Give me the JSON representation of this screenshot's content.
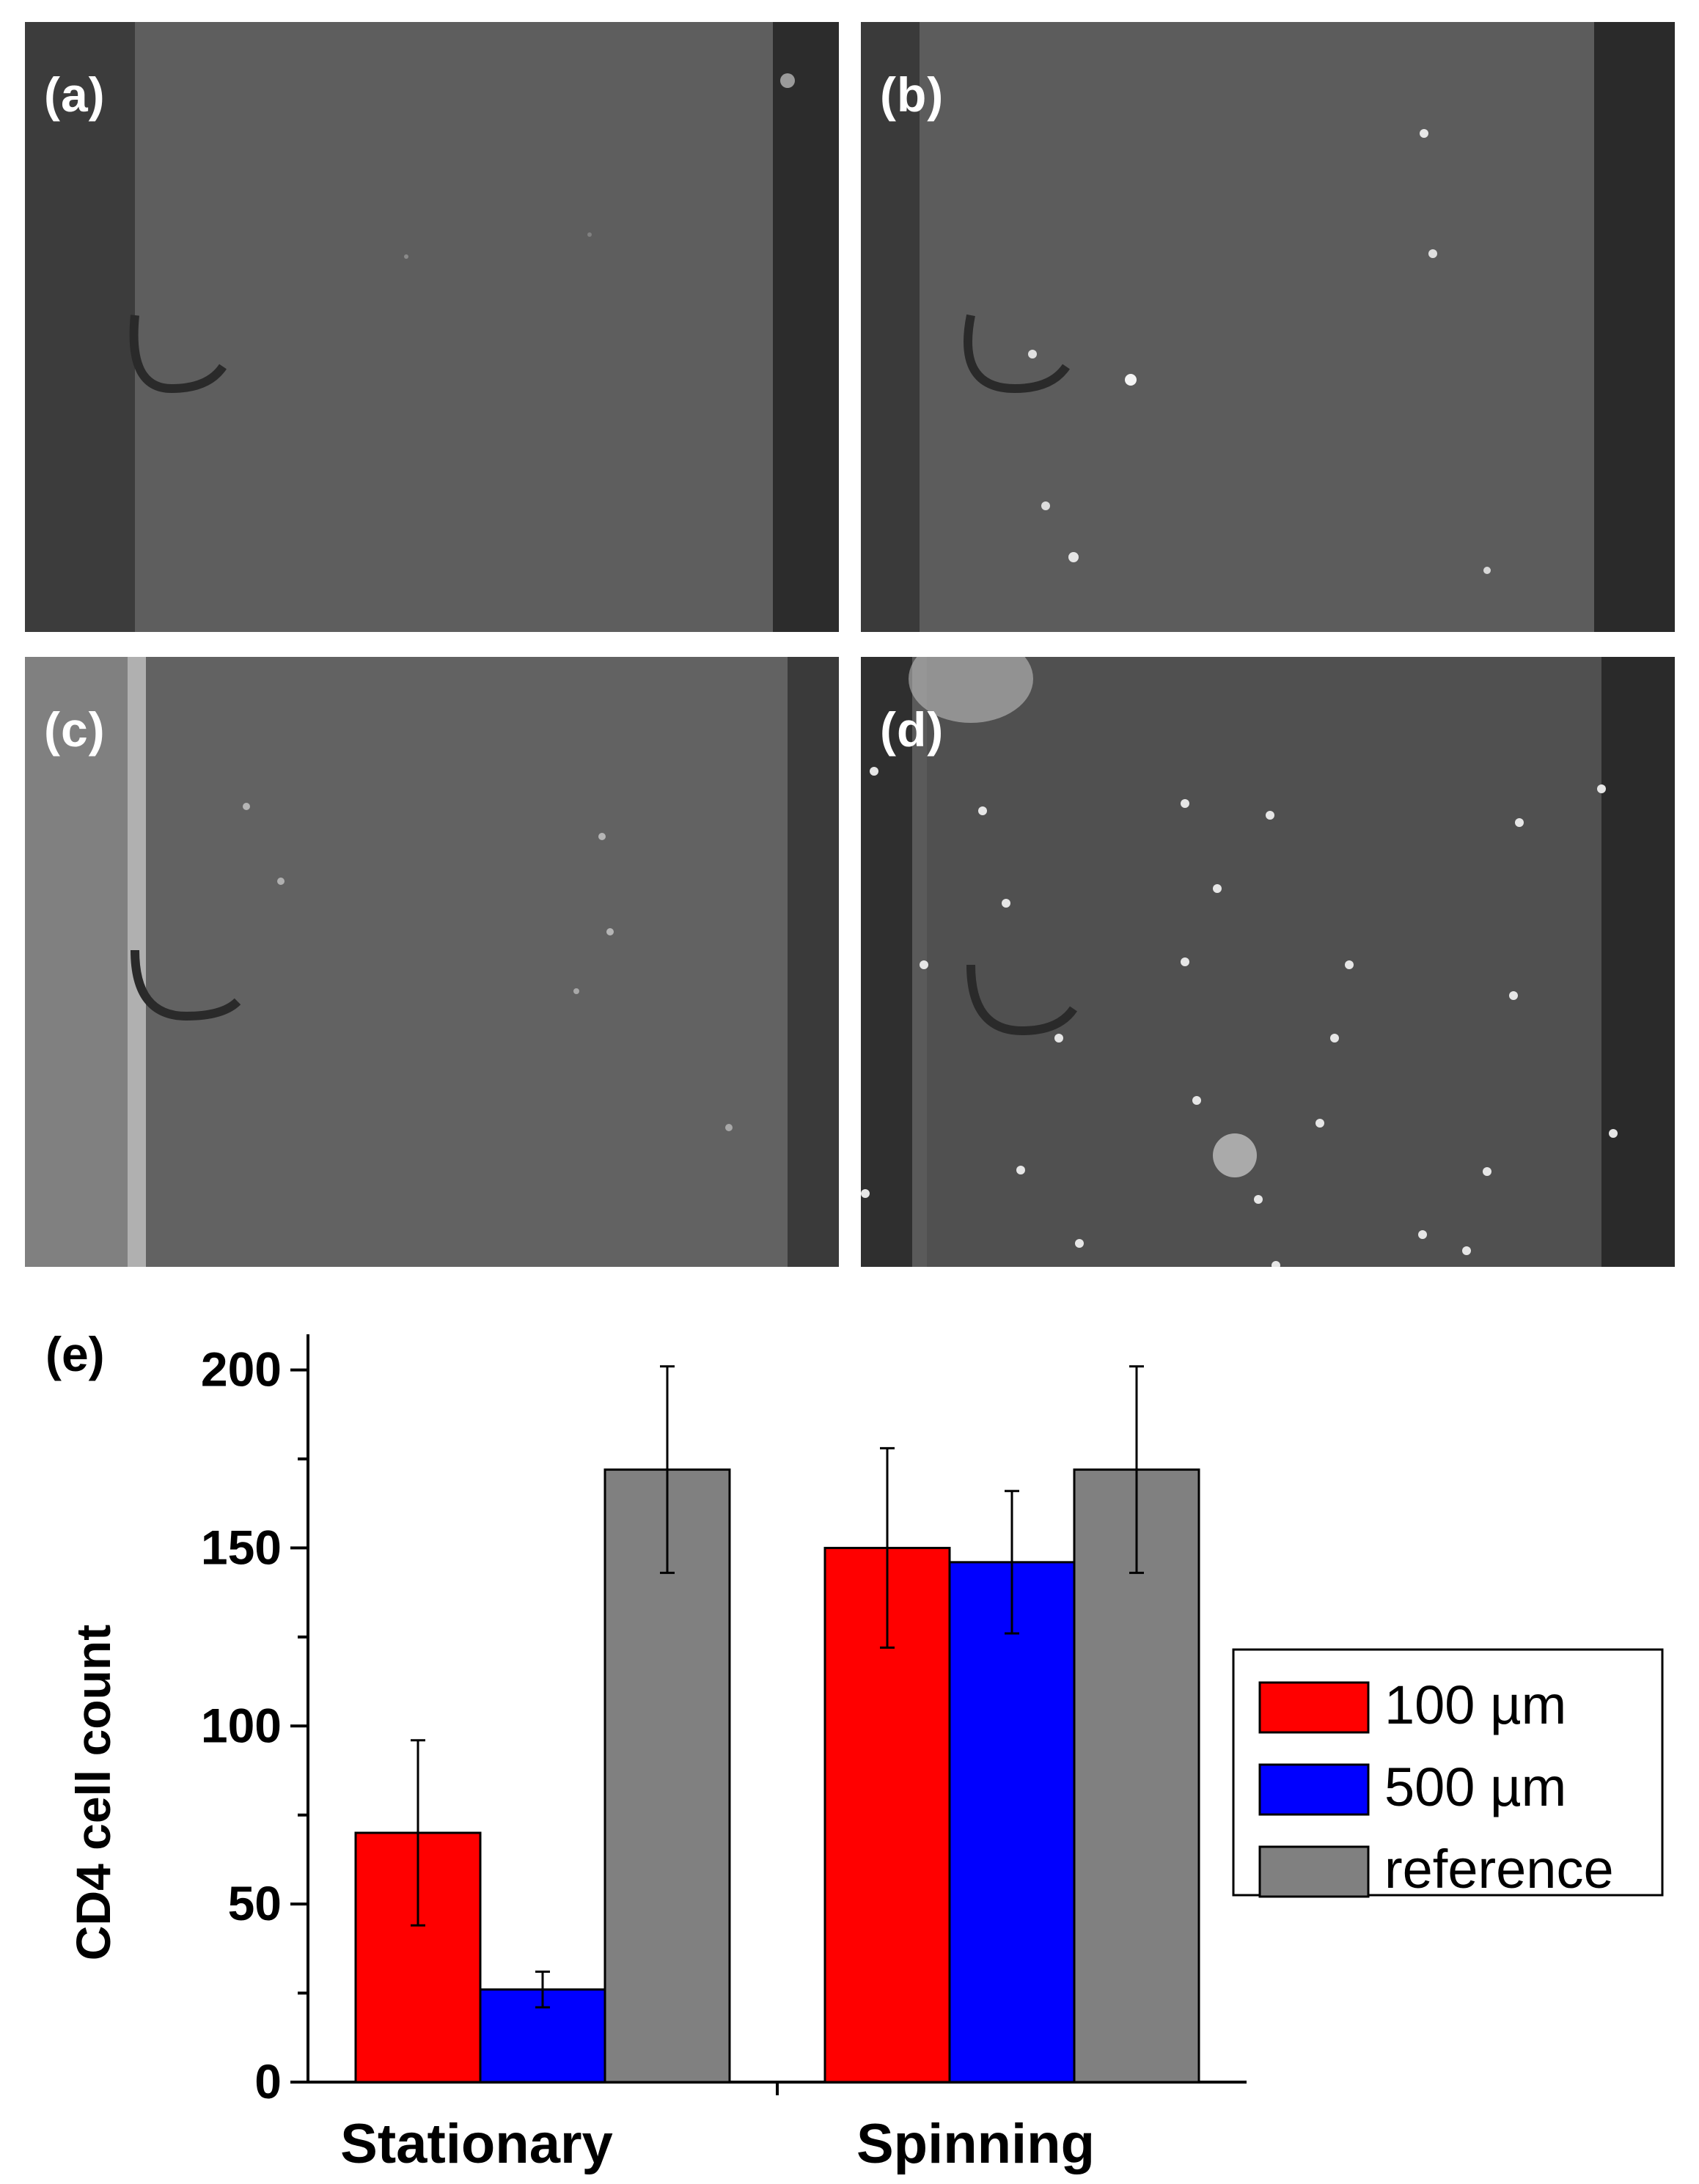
{
  "panels": {
    "a": {
      "label": "(a)"
    },
    "b": {
      "label": "(b)"
    },
    "c": {
      "label": "(c)"
    },
    "d": {
      "label": "(d)"
    },
    "e": {
      "label": "(e)"
    }
  },
  "chart_data": {
    "type": "bar",
    "categories": [
      "Stationary",
      "Spinning"
    ],
    "series": [
      {
        "name": "100 µm",
        "color": "#ff0000",
        "values": [
          70,
          150
        ],
        "errors": [
          26,
          28
        ]
      },
      {
        "name": "500 µm",
        "color": "#0000ff",
        "values": [
          26,
          146
        ],
        "errors": [
          5,
          20
        ]
      },
      {
        "name": "reference",
        "color": "#808080",
        "values": [
          172,
          172
        ],
        "errors": [
          29,
          29
        ]
      }
    ],
    "title": "",
    "xlabel": "",
    "ylabel": "CD4 cell count",
    "ylim": [
      0,
      210
    ],
    "yticks": [
      0,
      50,
      100,
      150,
      200
    ],
    "grid": false,
    "legend_position": "right"
  }
}
